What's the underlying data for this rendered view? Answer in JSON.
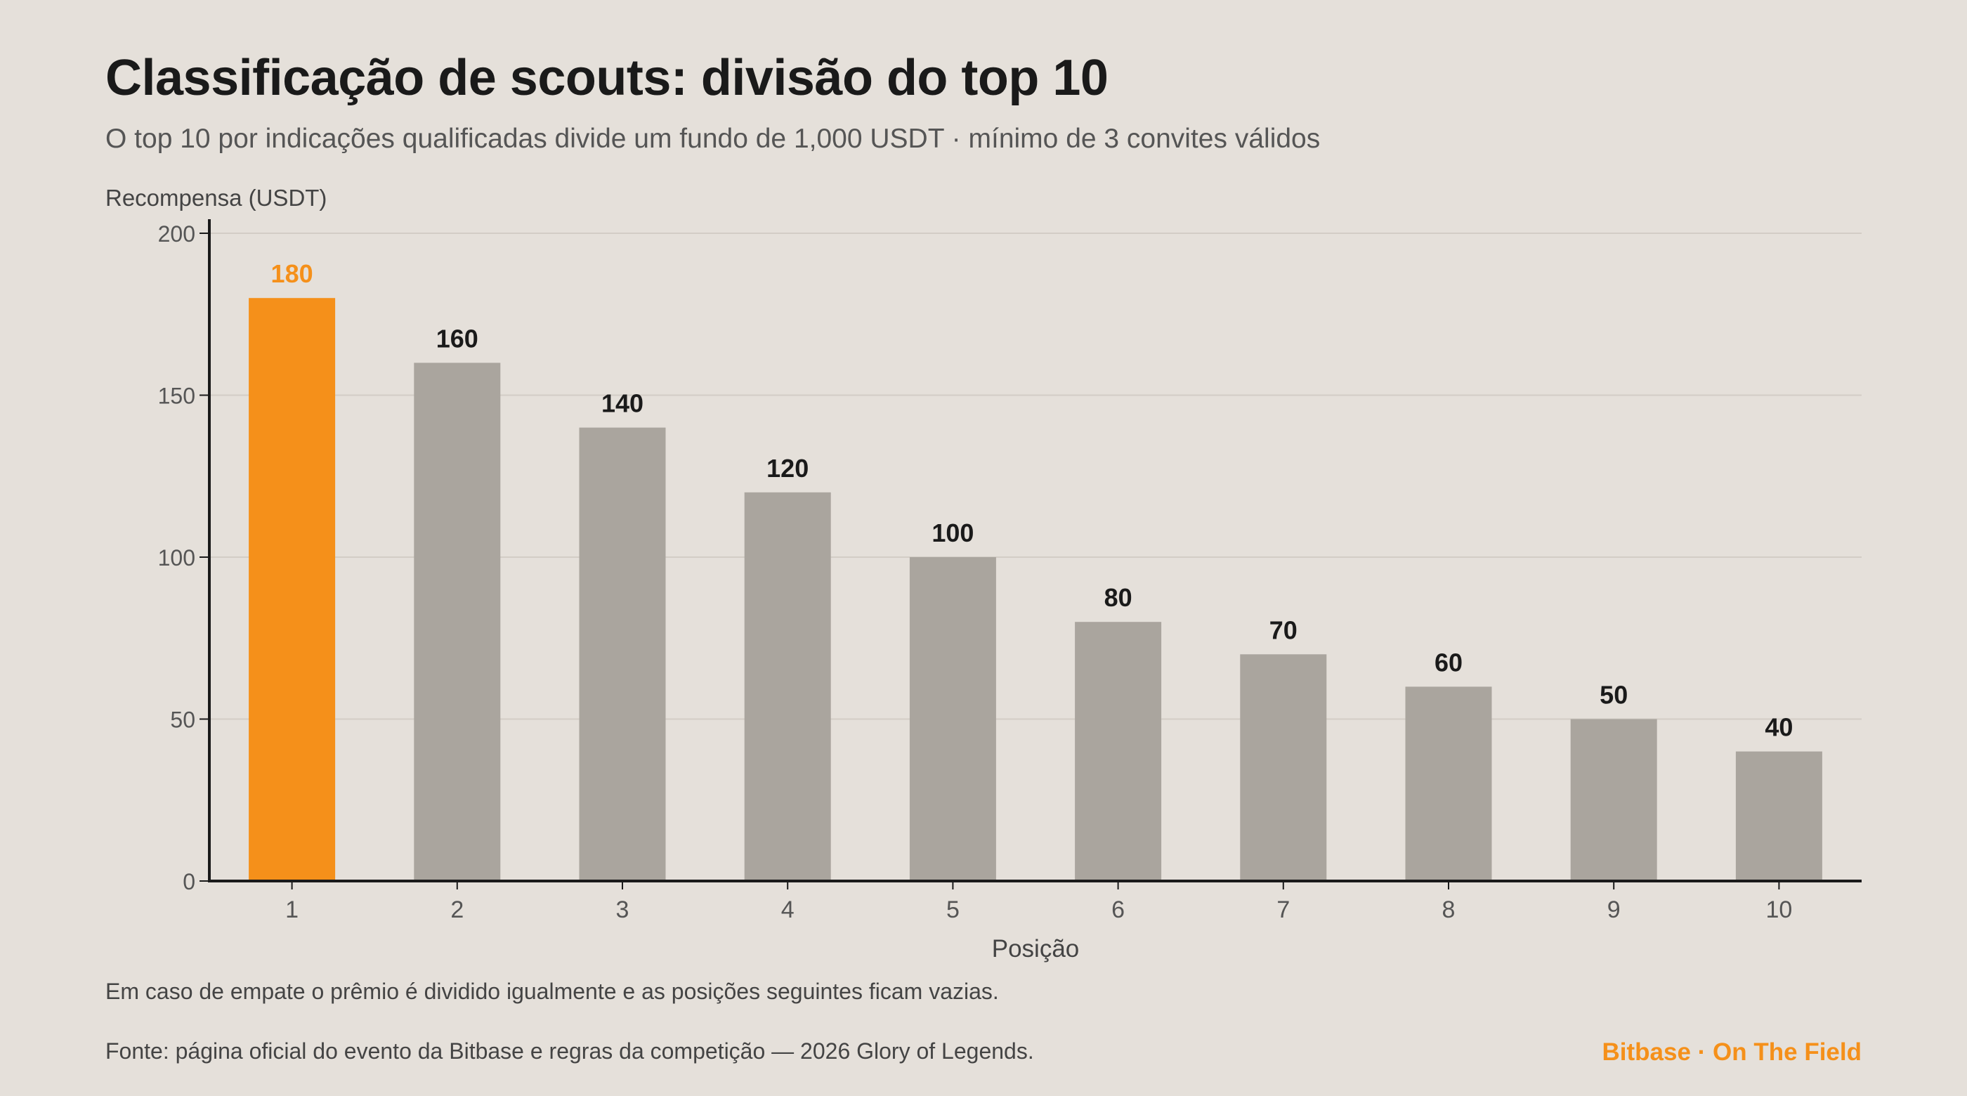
{
  "colors": {
    "background": "#e5e0da",
    "highlight": "#f5901a",
    "bar": "#aaa59e",
    "axis": "#1a1a1a",
    "grid": "#d3cdc6",
    "tick_text": "#555555",
    "label_text": "#1a1a1a"
  },
  "header": {
    "title": "Classificação de scouts: divisão do top 10",
    "subtitle": "O top 10 por indicações qualificadas divide um fundo de 1,000 USDT · mínimo de 3 convites válidos"
  },
  "chart_data": {
    "type": "bar",
    "title": "Classificação de scouts: divisão do top 10",
    "xlabel": "Posição",
    "ylabel": "Recompensa (USDT)",
    "categories": [
      "1",
      "2",
      "3",
      "4",
      "5",
      "6",
      "7",
      "8",
      "9",
      "10"
    ],
    "values": [
      180,
      160,
      140,
      120,
      100,
      80,
      70,
      60,
      50,
      40
    ],
    "data_labels": [
      "180",
      "160",
      "140",
      "120",
      "100",
      "80",
      "70",
      "60",
      "50",
      "40"
    ],
    "highlight_index": 0,
    "ylim": [
      0,
      200
    ],
    "yticks": [
      0,
      50,
      100,
      150,
      200
    ],
    "grid": true,
    "legend": "none"
  },
  "footer": {
    "note": "Em caso de empate o prêmio é dividido igualmente e as posições seguintes ficam vazias.",
    "source": "Fonte: página oficial do evento da Bitbase e regras da competição — 2026 Glory of Legends.",
    "brand": "Bitbase · On The Field"
  }
}
